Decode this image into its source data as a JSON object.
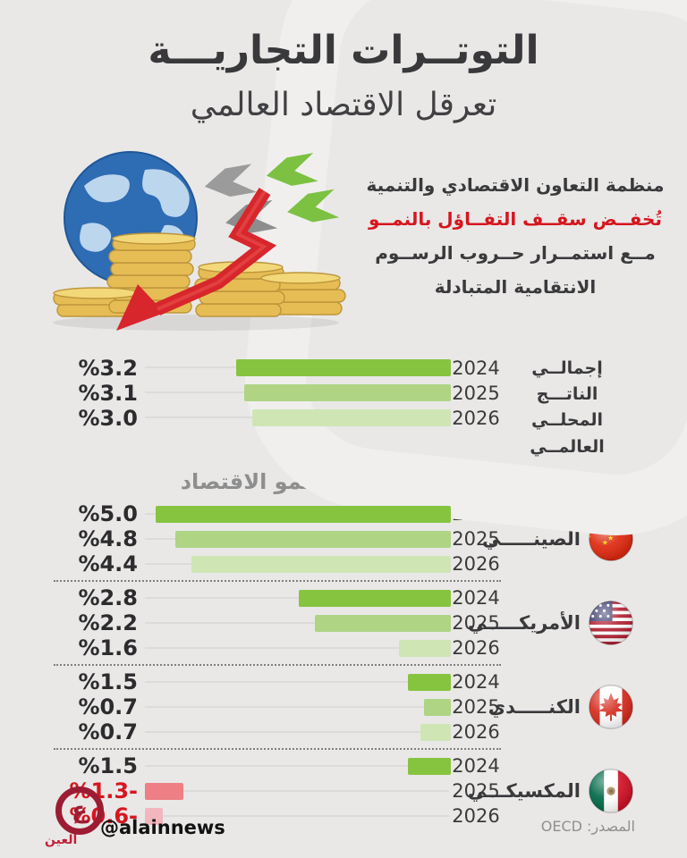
{
  "header": {
    "title_line1": "التوتــرات التجاريـــة",
    "title_line2": "تعرقل الاقتصاد العالمي"
  },
  "intro": {
    "lines": [
      "منظمة التعاون الاقتصادي والتنمية",
      "تُخفــض سقــف التفــاؤل بالنمــو",
      "مــع استمــرار حــروب الرســوم",
      "الانتقامية المتبادلة"
    ],
    "highlight_color": "#d6161f"
  },
  "chart_data": {
    "type": "bar",
    "orientation": "horizontal-rtl",
    "unit": "%",
    "section_heading": "معدل نمو الاقتصاد",
    "categories": [
      "2024",
      "2025",
      "2026"
    ],
    "colors": {
      "2024": "#86c440",
      "2025": "#aed484",
      "2026": "#cfe6b4",
      "negative_2025": "#ee7f85",
      "negative_2026": "#f4b6be",
      "track": "#dcdbda"
    },
    "groups": [
      {
        "name": "إجمالــي الناتـــج المحلــي العالمــي",
        "flag": null,
        "values": [
          3.2,
          3.1,
          3.0
        ],
        "labels": [
          "%3.2",
          "%3.1",
          "%3.0"
        ],
        "widths": [
          240,
          231,
          222
        ]
      },
      {
        "name": "الصينـــــي",
        "flag": "china-flag-icon",
        "values": [
          5.0,
          4.8,
          4.4
        ],
        "labels": [
          "%5.0",
          "%4.8",
          "%4.4"
        ],
        "widths": [
          330,
          308,
          290
        ]
      },
      {
        "name": "الأمريكـــــي",
        "flag": "usa-flag-icon",
        "values": [
          2.8,
          2.2,
          1.6
        ],
        "labels": [
          "%2.8",
          "%2.2",
          "%1.6"
        ],
        "widths": [
          170,
          152,
          58
        ]
      },
      {
        "name": "الكنـــــدي",
        "flag": "canada-flag-icon",
        "values": [
          1.5,
          0.7,
          0.7
        ],
        "labels": [
          "%1.5",
          "%0.7",
          "%0.7"
        ],
        "widths": [
          48,
          30,
          34
        ]
      },
      {
        "name": "المكسيكـــي",
        "flag": "mexico-flag-icon",
        "values": [
          1.5,
          -1.3,
          -0.6
        ],
        "labels": [
          "%1.5",
          "%1.3-",
          "%0.6-"
        ],
        "widths": [
          48,
          43,
          20
        ]
      }
    ]
  },
  "footer": {
    "logo_glyph": "ع",
    "logo_name": "العين",
    "handle": "@alainnews",
    "source": "المصدر: OECD"
  }
}
